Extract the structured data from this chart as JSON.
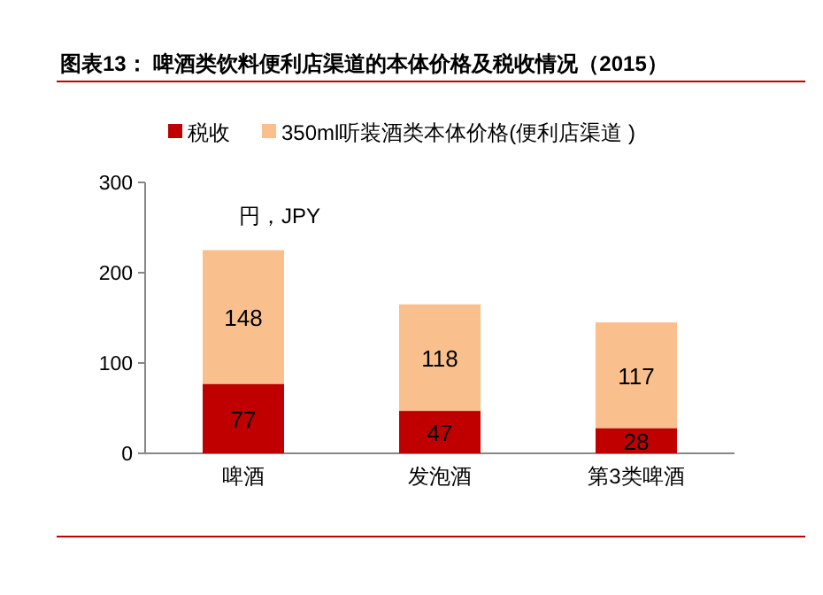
{
  "chart_data": {
    "type": "bar",
    "title": "图表13：  啤酒类饮料便利店渠道的本体价格及税收情况（2015）",
    "categories": [
      "啤酒",
      "发泡酒",
      "第3类啤酒"
    ],
    "stacked": true,
    "ylim": [
      0,
      300
    ],
    "yticks": [
      0,
      100,
      200,
      300
    ],
    "annotations": [
      "円，JPY"
    ],
    "legend": "top",
    "data_labels": true,
    "grid": false,
    "series": [
      {
        "name": "税收",
        "color": "#c00000",
        "values": [
          77,
          47,
          28
        ]
      },
      {
        "name": "350ml听装酒类本体价格(便利店渠道 )",
        "color": "#f9c08e",
        "values": [
          148,
          118,
          117
        ]
      }
    ]
  }
}
